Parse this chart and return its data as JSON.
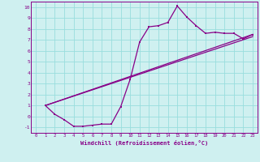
{
  "xlabel": "Windchill (Refroidissement éolien,°C)",
  "xlim": [
    -0.5,
    23.5
  ],
  "ylim": [
    -1.5,
    10.5
  ],
  "xticks": [
    0,
    1,
    2,
    3,
    4,
    5,
    6,
    7,
    8,
    9,
    10,
    11,
    12,
    13,
    14,
    15,
    16,
    17,
    18,
    19,
    20,
    21,
    22,
    23
  ],
  "yticks": [
    -1,
    0,
    1,
    2,
    3,
    4,
    5,
    6,
    7,
    8,
    9,
    10
  ],
  "background_color": "#cff0f0",
  "line_color": "#880088",
  "grid_color": "#99dddd",
  "series": [
    [
      1,
      1.0
    ],
    [
      2,
      0.2
    ],
    [
      3,
      -0.3
    ],
    [
      4,
      -0.9
    ],
    [
      5,
      -0.9
    ],
    [
      6,
      -0.8
    ],
    [
      7,
      -0.7
    ],
    [
      8,
      -0.7
    ],
    [
      9,
      0.9
    ],
    [
      10,
      3.4
    ],
    [
      11,
      6.8
    ],
    [
      12,
      8.2
    ],
    [
      13,
      8.3
    ],
    [
      14,
      8.6
    ],
    [
      15,
      10.1
    ],
    [
      16,
      9.1
    ],
    [
      17,
      8.3
    ],
    [
      18,
      7.6
    ],
    [
      19,
      7.7
    ],
    [
      20,
      7.6
    ],
    [
      21,
      7.6
    ],
    [
      22,
      7.1
    ],
    [
      23,
      7.5
    ]
  ],
  "line2": [
    [
      1,
      1.0
    ],
    [
      23,
      7.5
    ]
  ],
  "line3": [
    [
      1,
      1.0
    ],
    [
      23,
      7.3
    ]
  ]
}
